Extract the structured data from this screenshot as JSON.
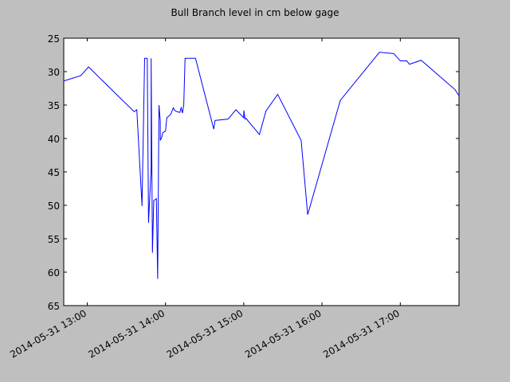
{
  "chart_data": {
    "type": "line",
    "title": "Bull Branch level in cm below gage",
    "xlabel": "",
    "ylabel": "",
    "ylim": [
      65,
      25
    ],
    "y_inverted": true,
    "yticks": [
      25,
      30,
      35,
      40,
      45,
      50,
      55,
      60,
      65
    ],
    "xlim": [
      "2014-05-31 12:42",
      "2014-05-31 17:45"
    ],
    "xticks": [
      "2014-05-31 13:00",
      "2014-05-31 14:00",
      "2014-05-31 15:00",
      "2014-05-31 16:00",
      "2014-05-31 17:00"
    ],
    "grid": false,
    "series": [
      {
        "color": "#0000ff",
        "x": [
          "2014-05-31 12:42",
          "2014-05-31 12:55",
          "2014-05-31 13:01",
          "2014-05-31 13:36",
          "2014-05-31 13:38",
          "2014-05-31 13:42",
          "2014-05-31 13:44",
          "2014-05-31 13:46",
          "2014-05-31 13:47",
          "2014-05-31 13:49",
          "2014-05-31 13:49",
          "2014-05-31 13:50",
          "2014-05-31 13:51",
          "2014-05-31 13:53",
          "2014-05-31 13:54",
          "2014-05-31 13:55",
          "2014-05-31 13:56",
          "2014-05-31 13:56",
          "2014-05-31 13:57",
          "2014-05-31 13:58",
          "2014-05-31 14:00",
          "2014-05-31 14:01",
          "2014-05-31 14:04",
          "2014-05-31 14:06",
          "2014-05-31 14:07",
          "2014-05-31 14:09",
          "2014-05-31 14:11",
          "2014-05-31 14:12",
          "2014-05-31 14:13",
          "2014-05-31 14:14",
          "2014-05-31 14:15",
          "2014-05-31 14:16",
          "2014-05-31 14:23",
          "2014-05-31 14:37",
          "2014-05-31 14:38",
          "2014-05-31 14:48",
          "2014-05-31 14:54",
          "2014-05-31 15:00",
          "2014-05-31 15:00",
          "2014-05-31 15:01",
          "2014-05-31 15:02",
          "2014-05-31 15:03",
          "2014-05-31 15:12",
          "2014-05-31 15:17",
          "2014-05-31 15:26",
          "2014-05-31 15:44",
          "2014-05-31 15:49",
          "2014-05-31 16:14",
          "2014-05-31 16:44",
          "2014-05-31 16:55",
          "2014-05-31 17:00",
          "2014-05-31 17:05",
          "2014-05-31 17:07",
          "2014-05-31 17:16",
          "2014-05-31 17:42",
          "2014-05-31 17:45"
        ],
        "y": [
          31.4,
          30.6,
          29.3,
          36.0,
          35.7,
          50.1,
          28.0,
          28.0,
          52.6,
          44.4,
          28.0,
          57.1,
          49.3,
          49.0,
          61.0,
          35.0,
          37.4,
          40.3,
          39.9,
          39.1,
          38.9,
          36.9,
          36.4,
          35.4,
          35.8,
          36.0,
          36.1,
          35.4,
          36.2,
          35.0,
          28.0,
          28.0,
          28.0,
          38.6,
          37.3,
          37.1,
          35.7,
          36.9,
          35.8,
          37.1,
          37.0,
          37.3,
          39.4,
          35.9,
          33.4,
          40.3,
          51.4,
          34.3,
          27.1,
          27.3,
          28.4,
          28.4,
          28.9,
          28.3,
          32.7,
          33.6
        ]
      }
    ]
  }
}
